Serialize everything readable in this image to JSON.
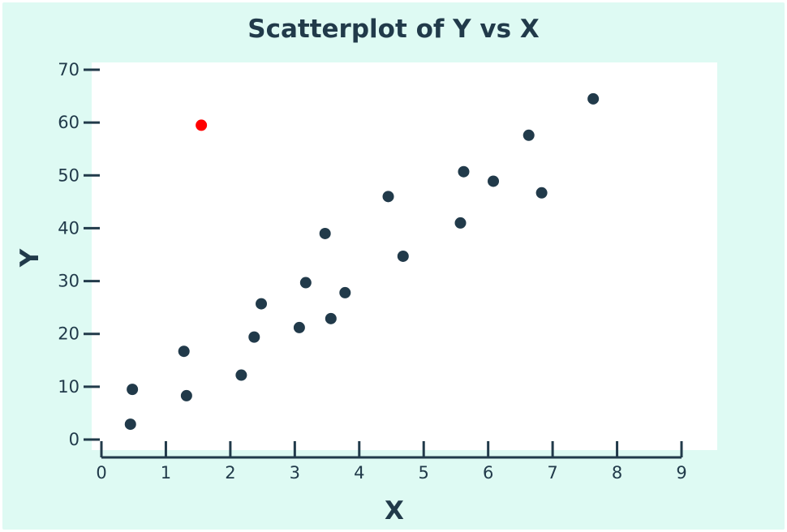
{
  "chart_data": {
    "type": "scatter",
    "title": "Scatterplot of Y vs X",
    "xlabel": "X",
    "ylabel": "Y",
    "xlim": [
      0,
      9
    ],
    "ylim": [
      0,
      70
    ],
    "xticks": [
      0,
      1,
      2,
      3,
      4,
      5,
      6,
      7,
      8,
      9
    ],
    "yticks": [
      0,
      10,
      20,
      30,
      40,
      50,
      60,
      70
    ],
    "grid": false,
    "colors": {
      "point": "#213a4a",
      "highlight": "#ff0000",
      "axis": "#213a4a",
      "background": "#defaf3",
      "plot_area": "#ffffff"
    },
    "points": [
      {
        "x": 0.45,
        "y": 2.9
      },
      {
        "x": 0.48,
        "y": 9.5
      },
      {
        "x": 1.32,
        "y": 8.3
      },
      {
        "x": 1.28,
        "y": 16.7
      },
      {
        "x": 2.17,
        "y": 12.2
      },
      {
        "x": 2.37,
        "y": 19.4
      },
      {
        "x": 2.48,
        "y": 25.7
      },
      {
        "x": 3.07,
        "y": 21.2
      },
      {
        "x": 3.17,
        "y": 29.7
      },
      {
        "x": 3.56,
        "y": 22.9
      },
      {
        "x": 3.47,
        "y": 39.0
      },
      {
        "x": 3.78,
        "y": 27.8
      },
      {
        "x": 4.45,
        "y": 46.0
      },
      {
        "x": 4.68,
        "y": 34.7
      },
      {
        "x": 5.57,
        "y": 41.0
      },
      {
        "x": 5.62,
        "y": 50.7
      },
      {
        "x": 6.08,
        "y": 48.9
      },
      {
        "x": 6.63,
        "y": 57.6
      },
      {
        "x": 6.83,
        "y": 46.7
      },
      {
        "x": 7.63,
        "y": 64.5
      }
    ],
    "highlight": [
      {
        "x": 1.55,
        "y": 59.5
      }
    ]
  }
}
